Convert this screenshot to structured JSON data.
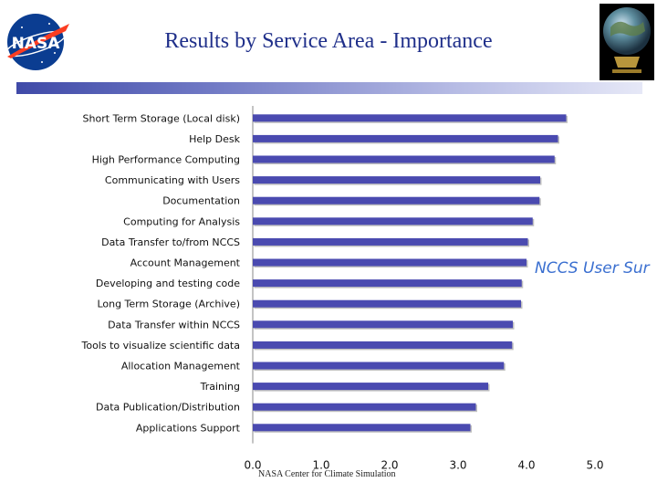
{
  "header": {
    "title": "Results by Service Area - Importance",
    "logo_text": "NASA"
  },
  "footer": {
    "text": "NASA Center for Climate Simulation"
  },
  "watermark": {
    "text": "NCCS User Sur"
  },
  "colors": {
    "bar_fill": "#4a4ab0",
    "title": "#1f2f8a",
    "nasa_blue": "#0b3d91",
    "nasa_red": "#fc3d21"
  },
  "chart_data": {
    "type": "bar",
    "orientation": "horizontal",
    "categories": [
      "Short Term Storage (Local disk)",
      "Help Desk",
      "High Performance Computing",
      "Communicating with Users",
      "Documentation",
      "Computing for Analysis",
      "Data Transfer to/from NCCS",
      "Account Management",
      "Developing and testing code",
      "Long Term Storage (Archive)",
      "Data Transfer within NCCS",
      "Tools to visualize scientific data",
      "Allocation Management",
      "Training",
      "Data Publication/Distribution",
      "Applications Support"
    ],
    "values": [
      4.58,
      4.46,
      4.41,
      4.2,
      4.19,
      4.09,
      4.02,
      4.0,
      3.93,
      3.92,
      3.8,
      3.79,
      3.67,
      3.44,
      3.26,
      3.18
    ],
    "xlim": [
      0,
      5
    ],
    "xticks": [
      "0.0",
      "1.0",
      "2.0",
      "3.0",
      "4.0",
      "5.0"
    ],
    "title": "",
    "xlabel": "",
    "ylabel": "",
    "grid": false,
    "legend": "none"
  }
}
